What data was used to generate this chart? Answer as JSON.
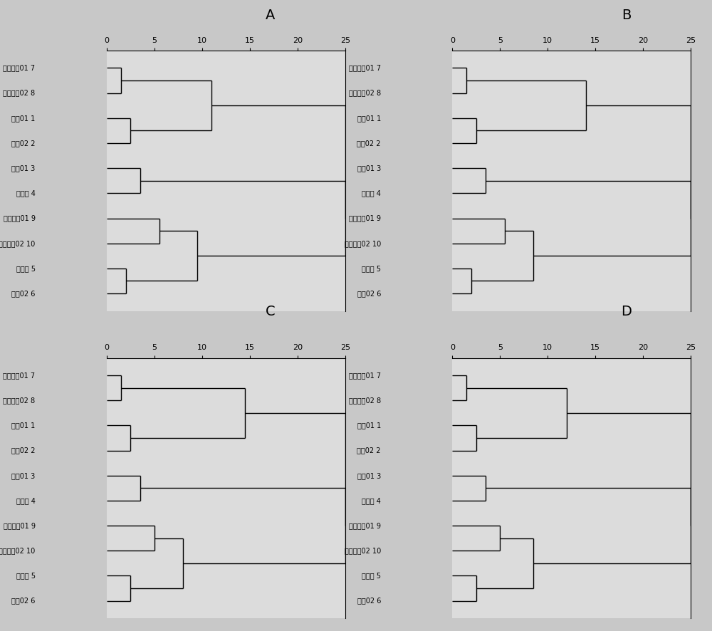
{
  "panel_labels": [
    "A",
    "B",
    "C",
    "D"
  ],
  "xlim": [
    0,
    25
  ],
  "xticks": [
    0,
    5,
    10,
    15,
    20,
    25
  ],
  "background_color": "#c8c8c8",
  "plot_bg_color": "#dcdcdc",
  "line_color": "#000000",
  "label_names": {
    "7": "委内瑞拉01 7",
    "8": "委内瑞拉02 8",
    "1": "巴襷01 1",
    "2": "巴襷02 2",
    "3": "辽河01 3",
    "4": "宜样吂 4",
    "9": "新疆风城01 9",
    "10": "新疆风城02 10",
    "5": "宜样吁 5",
    "6": "苏丮02 6"
  },
  "y_order": [
    7,
    8,
    1,
    2,
    3,
    4,
    9,
    10,
    5,
    6
  ],
  "panel_dists": {
    "A": {
      "d_78": 1.5,
      "d_12": 2.5,
      "d_1278": 11.0,
      "d_34": 3.5,
      "d_910": 5.5,
      "d_56": 2.0,
      "d_91056": 9.5,
      "d_big": 25.0
    },
    "B": {
      "d_78": 1.5,
      "d_12": 2.5,
      "d_1278": 14.0,
      "d_34": 3.5,
      "d_910": 5.5,
      "d_56": 2.0,
      "d_91056": 8.5,
      "d_big": 25.0
    },
    "C": {
      "d_78": 1.5,
      "d_12": 2.5,
      "d_1278": 14.5,
      "d_34": 3.5,
      "d_910": 5.0,
      "d_56": 2.5,
      "d_91056": 8.0,
      "d_big": 25.0
    },
    "D": {
      "d_78": 1.5,
      "d_12": 2.5,
      "d_1278": 12.0,
      "d_34": 3.5,
      "d_910": 5.0,
      "d_56": 2.5,
      "d_91056": 8.5,
      "d_big": 25.0
    }
  }
}
